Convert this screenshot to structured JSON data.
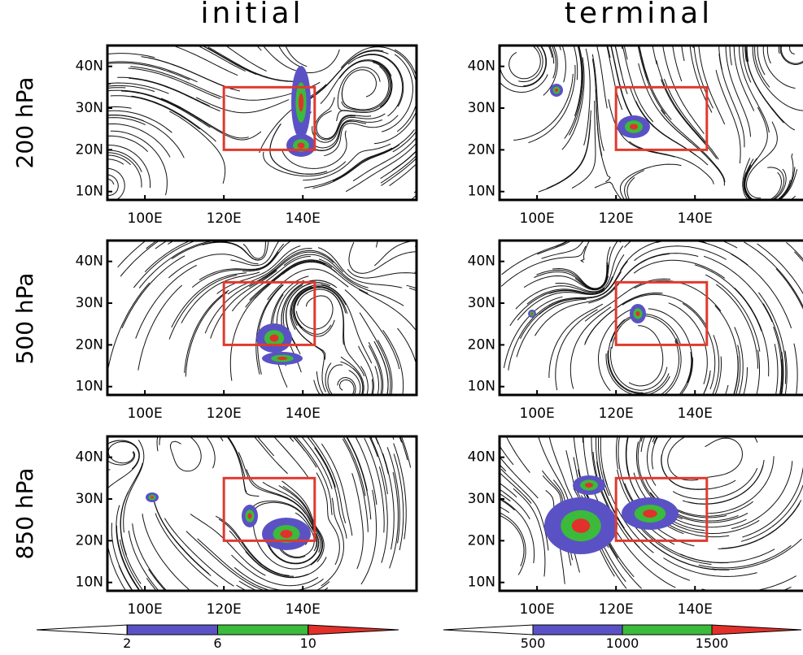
{
  "columns": [
    "initial",
    "terminal"
  ],
  "rows": [
    "200 hPa",
    "500 hPa",
    "850 hPa"
  ],
  "map": {
    "xlim": [
      90.5,
      168.8
    ],
    "ylim": [
      8,
      45
    ],
    "xticks": [
      {
        "value": 100,
        "label": "100E"
      },
      {
        "value": 120,
        "label": "120E"
      },
      {
        "value": 140,
        "label": "140E"
      }
    ],
    "yticks": [
      {
        "value": 10,
        "label": "10N"
      },
      {
        "value": 20,
        "label": "20N"
      },
      {
        "value": 30,
        "label": "30N"
      },
      {
        "value": 40,
        "label": "40N"
      }
    ],
    "box": {
      "lon": [
        120,
        143
      ],
      "lat": [
        20,
        35
      ],
      "color": "#e03a2e"
    }
  },
  "colorbars": [
    {
      "ticks": [
        2,
        6,
        10
      ],
      "colors": [
        "#ffffff",
        "#5a52c4",
        "#3cba3c",
        "#e2312a"
      ]
    },
    {
      "ticks": [
        500,
        1000,
        1500
      ],
      "colors": [
        "#ffffff",
        "#5a52c4",
        "#3cba3c",
        "#e2312a"
      ]
    }
  ]
}
